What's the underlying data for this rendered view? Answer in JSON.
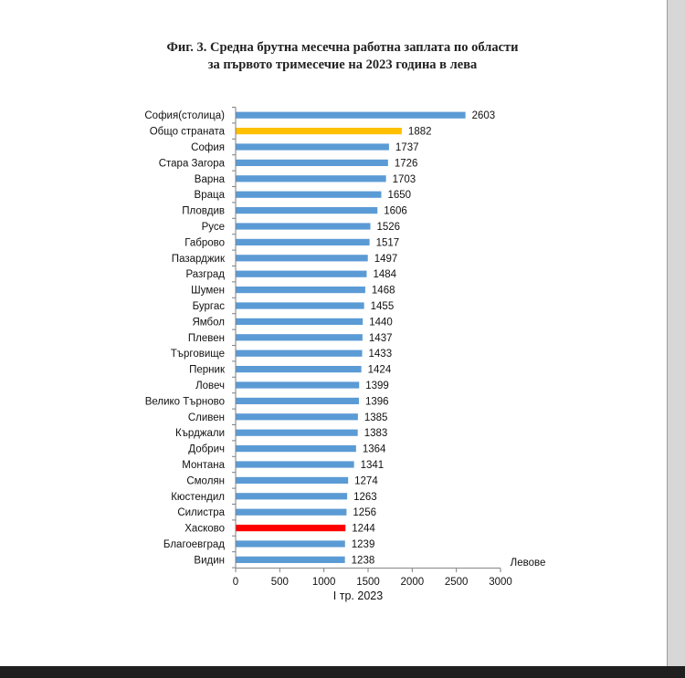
{
  "chart_data": {
    "type": "bar",
    "orientation": "horizontal",
    "title": "Фиг. 3. Средна брутна месечна работна заплата по области",
    "subtitle": "за първото тримесечие на 2023 година в лева",
    "xlabel": "І тр. 2023",
    "x_unit": "Левове",
    "xlim": [
      0,
      3000
    ],
    "xticks": [
      0,
      500,
      1000,
      1500,
      2000,
      2500,
      3000
    ],
    "grid": false,
    "categories": [
      "София(столица)",
      "Общо страната",
      "София",
      "Стара Загора",
      "Варна",
      "Враца",
      "Пловдив",
      "Русе",
      "Габрово",
      "Пазарджик",
      "Разград",
      "Шумен",
      "Бургас",
      "Ямбол",
      "Плевен",
      "Търговище",
      "Перник",
      "Ловеч",
      "Велико Търново",
      "Сливен",
      "Кърджали",
      "Добрич",
      "Монтана",
      "Смолян",
      "Кюстендил",
      "Силистра",
      "Хасково",
      "Благоевград",
      "Видин"
    ],
    "values": [
      2603,
      1882,
      1737,
      1726,
      1703,
      1650,
      1606,
      1526,
      1517,
      1497,
      1484,
      1468,
      1455,
      1440,
      1437,
      1433,
      1424,
      1399,
      1396,
      1385,
      1383,
      1364,
      1341,
      1274,
      1263,
      1256,
      1244,
      1239,
      1238
    ],
    "highlight": {
      "Общо страната": "#ffc000",
      "Хасково": "#ff0000"
    }
  },
  "colors": {
    "bar": "#5b9bd5",
    "axis": "#7f7f7f"
  }
}
